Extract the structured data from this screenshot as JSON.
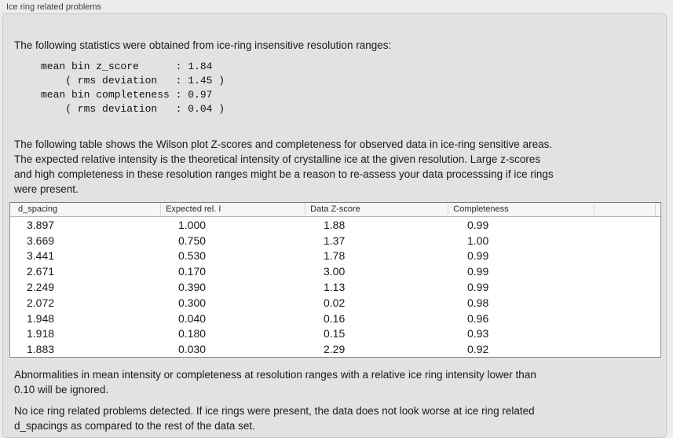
{
  "panel": {
    "title": "Ice ring related problems"
  },
  "stats_section": {
    "intro": "The following statistics were obtained from ice-ring insensitive resolution ranges:",
    "stats_lines": [
      "mean bin z_score      : 1.84",
      "    ( rms deviation   : 1.45 )",
      "mean bin completeness : 0.97",
      "    ( rms deviation   : 0.04 )"
    ],
    "values": {
      "mean_bin_z_score": "1.84",
      "z_score_rms_deviation": "1.45",
      "mean_bin_completeness": "0.97",
      "completeness_rms_deviation": "0.04"
    }
  },
  "table_section": {
    "description_lines": [
      "The following table shows the Wilson plot Z-scores and completeness for observed data in ice-ring sensitive areas.",
      "The expected relative intensity is the theoretical intensity of crystalline ice at the given resolution. Large z-scores",
      "and high completeness in these resolution ranges might be a reason to re-assess your data processsing if ice rings",
      "were present."
    ],
    "table": {
      "columns": [
        "d_spacing",
        "Expected rel. I",
        "Data Z-score",
        "Completeness"
      ],
      "rows": [
        [
          "3.897",
          "1.000",
          "1.88",
          "0.99"
        ],
        [
          "3.669",
          "0.750",
          "1.37",
          "1.00"
        ],
        [
          "3.441",
          "0.530",
          "1.78",
          "0.99"
        ],
        [
          "2.671",
          "0.170",
          "3.00",
          "0.99"
        ],
        [
          "2.249",
          "0.390",
          "1.13",
          "0.99"
        ],
        [
          "2.072",
          "0.300",
          "0.02",
          "0.98"
        ],
        [
          "1.948",
          "0.040",
          "0.16",
          "0.96"
        ],
        [
          "1.918",
          "0.180",
          "0.15",
          "0.93"
        ],
        [
          "1.883",
          "0.030",
          "2.29",
          "0.92"
        ]
      ]
    }
  },
  "notes": {
    "ignore_note_lines": [
      "Abnormalities in mean intensity or completeness at resolution ranges with a relative ice ring intensity lower than",
      "0.10 will be ignored."
    ],
    "conclusion_lines": [
      "No ice ring related problems detected. If ice rings were present, the data does not look worse at ice ring related",
      "d_spacings as compared to the rest of the data set."
    ]
  },
  "colors": {
    "window_background": "#ececec",
    "groupbox_background": "#e2e2e2",
    "groupbox_border": "#c9c9c9",
    "table_background": "#ffffff",
    "table_border": "#8f8f8f",
    "header_background": "#f6f6f6",
    "text": "#1a1a1a"
  }
}
